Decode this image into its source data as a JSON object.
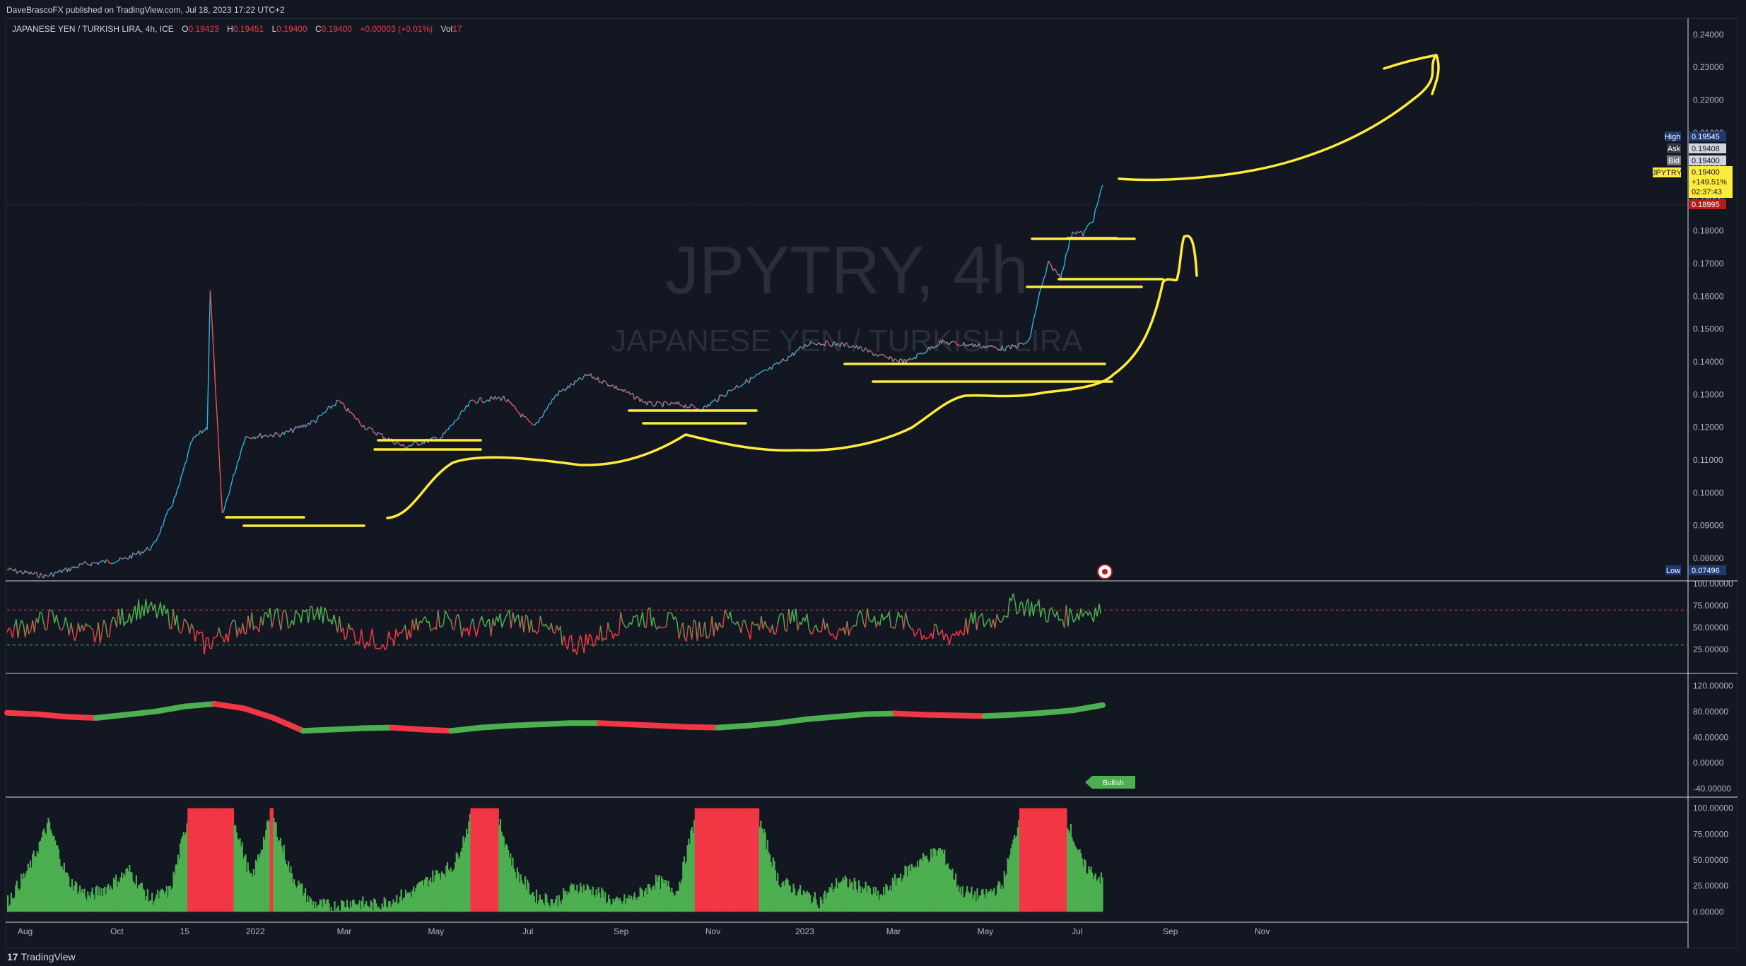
{
  "header": {
    "publisher": "DaveBrascoFX published on TradingView.com, Jul 18, 2023 17:22 UTC+2"
  },
  "legend": {
    "symbol": "JAPANESE YEN / TURKISH LIRA, 4h, ICE",
    "open_label": "O",
    "open": "0.19423",
    "high_label": "H",
    "high": "0.19451",
    "low_label": "L",
    "low": "0.19400",
    "close_label": "C",
    "close": "0.19400",
    "change": "+0.00003 (+0.01%)",
    "vol_label": "Vol",
    "vol": "17"
  },
  "watermark": {
    "ticker": "JPYTRY, 4h",
    "name": "JAPANESE YEN / TURKISH LIRA"
  },
  "price_tags": {
    "high_label": "High",
    "high_value": "0.19545",
    "ask_label": "Ask",
    "ask_value": "0.19408",
    "bid_label": "Bid",
    "bid_value": "0.19400",
    "symbol_label": "JPYTRY",
    "last_value": "0.19400",
    "last_change": "+149.51%",
    "countdown": "02:37:43",
    "red_value": "0.18995",
    "low_label": "Low",
    "low_value": "0.07496"
  },
  "indicator_badge": "Bullish",
  "footer": {
    "logo_text": "TradingView",
    "logo_mark": "17"
  },
  "colors": {
    "background": "#131722",
    "grid": "#2a2e39",
    "axis_text": "#b2b5be",
    "candle_up": "#26a69a",
    "candle_down": "#ef5350",
    "price_line": "#2ab7e6",
    "annotation": "#ffeb3b",
    "bull_green": "#4caf50",
    "bear_red": "#f23645",
    "high_tag": "#1e3a6e",
    "last_tag": "#ffeb3b",
    "red_tag": "#b71c1c"
  },
  "chart_data": [
    {
      "type": "line",
      "title": "JAPANESE YEN / TURKISH LIRA, 4h, ICE",
      "xlabel": "",
      "ylabel": "",
      "x_ticks": [
        "Aug",
        "Oct",
        "15",
        "2022",
        "Mar",
        "May",
        "Jul",
        "Sep",
        "Nov",
        "2023",
        "Mar",
        "May",
        "Jul",
        "Sep",
        "Nov"
      ],
      "y_ticks": [
        "0.24000",
        "0.23000",
        "0.22000",
        "0.21000",
        "0.20000",
        "0.19000",
        "0.18000",
        "0.17000",
        "0.16000",
        "0.15000",
        "0.14000",
        "0.13000",
        "0.12000",
        "0.11000",
        "0.10000",
        "0.09000",
        "0.08000"
      ],
      "ylim": [
        0.0735,
        0.2445
      ],
      "x": [
        "2021-07-20",
        "2021-08-15",
        "2021-09-10",
        "2021-10-05",
        "2021-10-25",
        "2021-11-10",
        "2021-11-20",
        "2021-11-30",
        "2021-12-02",
        "2021-12-10",
        "2021-12-25",
        "2022-01-20",
        "2022-02-10",
        "2022-02-25",
        "2022-03-15",
        "2022-04-10",
        "2022-05-05",
        "2022-05-25",
        "2022-06-15",
        "2022-07-05",
        "2022-07-20",
        "2022-08-10",
        "2022-08-25",
        "2022-09-20",
        "2022-10-10",
        "2022-10-25",
        "2022-11-15",
        "2022-12-10",
        "2023-01-05",
        "2023-02-01",
        "2023-02-25",
        "2023-03-10",
        "2023-04-01",
        "2023-04-25",
        "2023-05-15",
        "2023-05-30",
        "2023-06-05",
        "2023-06-12",
        "2023-06-20",
        "2023-06-28",
        "2023-07-05",
        "2023-07-12",
        "2023-07-18"
      ],
      "values": [
        0.0765,
        0.0745,
        0.0782,
        0.0795,
        0.0835,
        0.1,
        0.116,
        0.12,
        0.162,
        0.093,
        0.117,
        0.118,
        0.122,
        0.128,
        0.12,
        0.114,
        0.117,
        0.128,
        0.129,
        0.12,
        0.13,
        0.136,
        0.133,
        0.127,
        0.127,
        0.1255,
        0.132,
        0.138,
        0.146,
        0.145,
        0.141,
        0.14,
        0.146,
        0.145,
        0.144,
        0.146,
        0.159,
        0.17,
        0.166,
        0.18,
        0.179,
        0.184,
        0.194
      ]
    },
    {
      "type": "line",
      "title": "",
      "y_ticks": [
        "100.00000",
        "75.00000",
        "50.00000",
        "25.00000"
      ],
      "ylim": [
        0,
        100
      ],
      "reference_levels": [
        70,
        30
      ],
      "values": [
        45,
        52,
        60,
        48,
        40,
        58,
        72,
        66,
        55,
        30,
        45,
        55,
        60,
        58,
        68,
        55,
        40,
        35,
        38,
        55,
        62,
        48,
        52,
        60,
        55,
        42,
        30,
        40,
        55,
        62,
        58,
        45,
        50,
        62,
        48,
        55,
        60,
        52,
        45,
        58,
        62,
        55,
        42,
        40,
        55,
        58,
        78,
        72,
        60,
        68,
        70
      ]
    },
    {
      "type": "line",
      "title": "",
      "y_ticks": [
        "120.00000",
        "80.00000",
        "40.00000",
        "0.00000",
        "-40.00000"
      ],
      "ylim": [
        -50,
        135
      ],
      "values": [
        78,
        76,
        72,
        70,
        75,
        80,
        88,
        92,
        85,
        70,
        50,
        52,
        54,
        55,
        52,
        50,
        55,
        58,
        60,
        62,
        62,
        60,
        58,
        56,
        55,
        58,
        62,
        68,
        72,
        76,
        77,
        75,
        74,
        73,
        75,
        78,
        82,
        90
      ]
    },
    {
      "type": "bar",
      "title": "",
      "y_ticks": [
        "100.00000",
        "75.00000",
        "50.00000",
        "25.00000",
        "0.00000"
      ],
      "ylim": [
        -8,
        108
      ],
      "values": [
        10,
        40,
        85,
        30,
        15,
        25,
        40,
        12,
        20,
        100,
        100,
        100,
        30,
        95,
        35,
        8,
        5,
        10,
        6,
        12,
        20,
        35,
        45,
        100,
        100,
        40,
        15,
        10,
        25,
        20,
        8,
        15,
        30,
        20,
        100,
        100,
        95,
        90,
        30,
        20,
        10,
        30,
        25,
        15,
        35,
        50,
        60,
        20,
        15,
        25,
        100,
        100,
        100,
        45,
        30
      ]
    }
  ]
}
